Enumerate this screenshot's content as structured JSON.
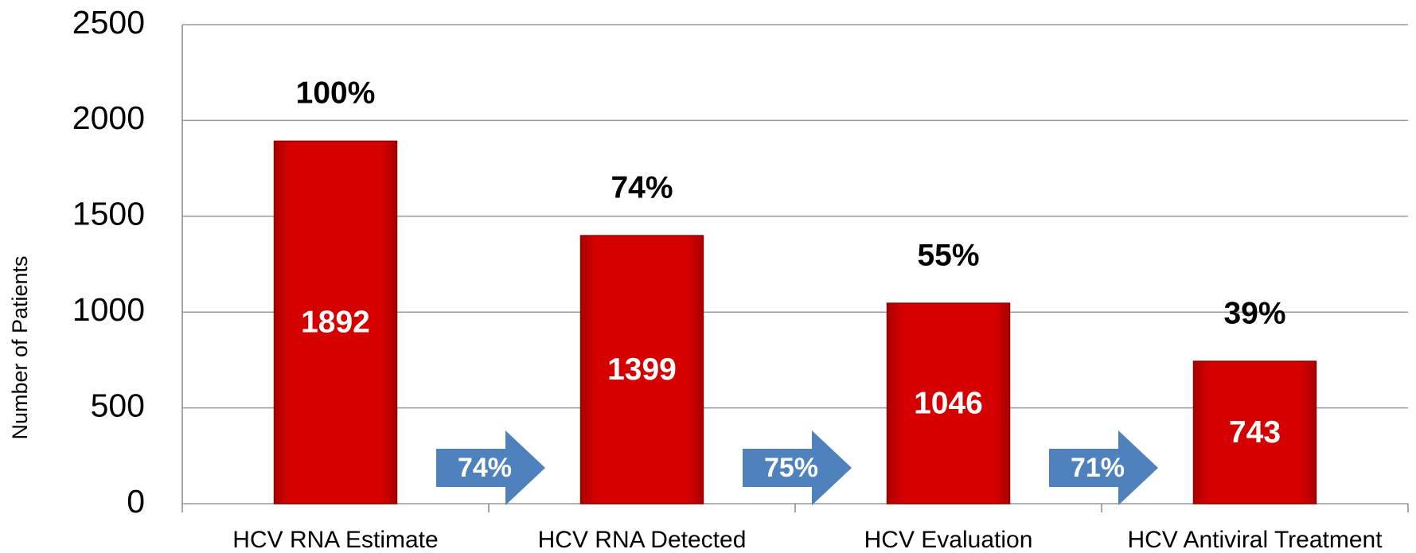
{
  "chart_data": {
    "type": "bar",
    "y_axis_label": "Number of Patients",
    "categories": [
      "HCV RNA Estimate",
      "HCV RNA Detected",
      "HCV Evaluation",
      "HCV Antiviral Treatment"
    ],
    "values": [
      1892,
      1399,
      1046,
      743
    ],
    "color": "#cc0000",
    "ylim": [
      0,
      2500
    ],
    "yticks": [
      0,
      500,
      1000,
      1500,
      2000,
      2500
    ],
    "grid": true,
    "percent_of_first": {
      "values": [
        100,
        74,
        55,
        39
      ],
      "value_labels": [
        "100%",
        "74%",
        "55%",
        "39%"
      ]
    },
    "step_conversion": {
      "values": [
        74,
        75,
        71
      ],
      "value_labels": [
        "74%",
        "75%",
        "71%"
      ],
      "color": "#4f81bd"
    }
  }
}
